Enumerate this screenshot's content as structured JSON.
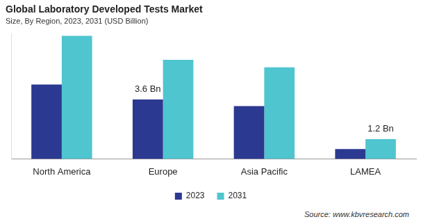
{
  "chart_data": {
    "type": "bar",
    "title": "Global Laboratory Developed Tests Market",
    "subtitle": "Size, By Region, 2023, 2031 (USD Billion)",
    "source": "Source: www.kbvresearch.com",
    "categories": [
      "North America",
      "Europe",
      "Asia Pacific",
      "LAMEA"
    ],
    "series": [
      {
        "name": "2023",
        "color": "#2b3990",
        "values": [
          4.5,
          3.6,
          3.2,
          0.6
        ],
        "value_labels": [
          null,
          "3.6 Bn",
          null,
          null
        ]
      },
      {
        "name": "2031",
        "color": "#4fc5cf",
        "values": [
          7.45,
          6.0,
          5.55,
          1.2
        ],
        "value_labels": [
          null,
          null,
          null,
          "1.2 Bn"
        ]
      }
    ],
    "ylim": [
      0,
      7.6
    ],
    "grid": false,
    "legend": "bottom",
    "data_labels": true,
    "tick_labels": "x"
  }
}
